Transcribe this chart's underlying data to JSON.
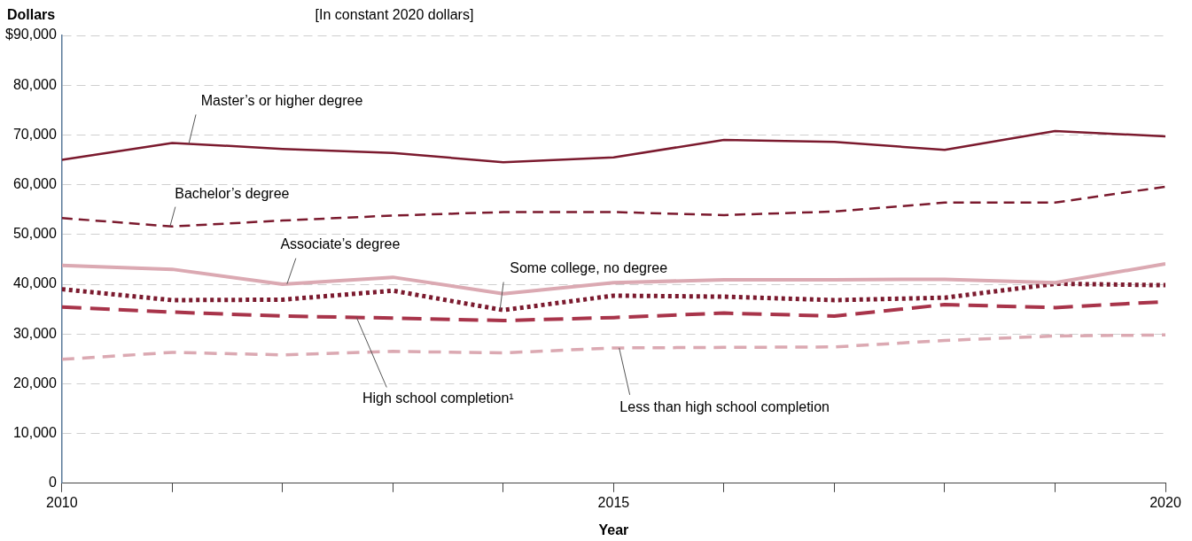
{
  "chart_data": {
    "type": "line",
    "subtitle": "[In constant 2020 dollars]",
    "ylabel": "Dollars",
    "xlabel": "Year",
    "x": [
      2010,
      2011,
      2012,
      2013,
      2014,
      2015,
      2016,
      2017,
      2018,
      2019,
      2020
    ],
    "xlim": [
      2010,
      2020
    ],
    "xticks": [
      2010,
      {
        "value": 2011,
        "label": null
      },
      {
        "value": 2012,
        "label": null
      },
      {
        "value": 2013,
        "label": null
      },
      {
        "value": 2014,
        "label": null
      },
      2015,
      {
        "value": 2016,
        "label": null
      },
      {
        "value": 2017,
        "label": null
      },
      {
        "value": 2018,
        "label": null
      },
      {
        "value": 2019,
        "label": null
      },
      2020
    ],
    "ylim": [
      0,
      90000
    ],
    "yticks": [
      0,
      {
        "value": 10000,
        "label": "10,000"
      },
      {
        "value": 20000,
        "label": "20,000"
      },
      {
        "value": 30000,
        "label": "30,000"
      },
      {
        "value": 40000,
        "label": "40,000"
      },
      {
        "value": 50000,
        "label": "50,000"
      },
      {
        "value": 60000,
        "label": "60,000"
      },
      {
        "value": 70000,
        "label": "70,000"
      },
      {
        "value": 80000,
        "label": "80,000"
      },
      {
        "value": 90000,
        "label": "$90,000"
      }
    ],
    "grid": "y",
    "legend": false,
    "series": [
      {
        "name": "Master’s or higher degree",
        "color": "#7b1a2e",
        "line_style": "solid",
        "values": [
          65000,
          68400,
          67200,
          66400,
          64500,
          65500,
          69000,
          68600,
          67000,
          70800,
          69700
        ]
      },
      {
        "name": "Bachelor’s degree",
        "color": "#7b1a2e",
        "line_style": "dashed",
        "values": [
          53300,
          51600,
          52800,
          53800,
          54500,
          54500,
          53900,
          54600,
          56400,
          56400,
          59600
        ]
      },
      {
        "name": "Associate’s degree",
        "color": "#dba9b2",
        "line_style": "solid",
        "values": [
          43800,
          43000,
          40000,
          41400,
          38100,
          40300,
          40900,
          40900,
          41000,
          40300,
          44100
        ]
      },
      {
        "name": "Some college, no degree",
        "color": "#7b1a2e",
        "line_style": "dotted",
        "values": [
          39000,
          36800,
          36900,
          38700,
          34800,
          37700,
          37500,
          36800,
          37300,
          40100,
          39800
        ]
      },
      {
        "name": "High school completion¹",
        "color": "#a8344a",
        "line_style": "dashed",
        "values": [
          35400,
          34400,
          33600,
          33200,
          32700,
          33300,
          34200,
          33600,
          35900,
          35300,
          36500
        ]
      },
      {
        "name": "Less than high school completion",
        "color": "#dba9b2",
        "line_style": "dashed",
        "values": [
          24900,
          26300,
          25800,
          26500,
          26200,
          27200,
          27300,
          27400,
          28700,
          29600,
          29800
        ]
      }
    ]
  }
}
